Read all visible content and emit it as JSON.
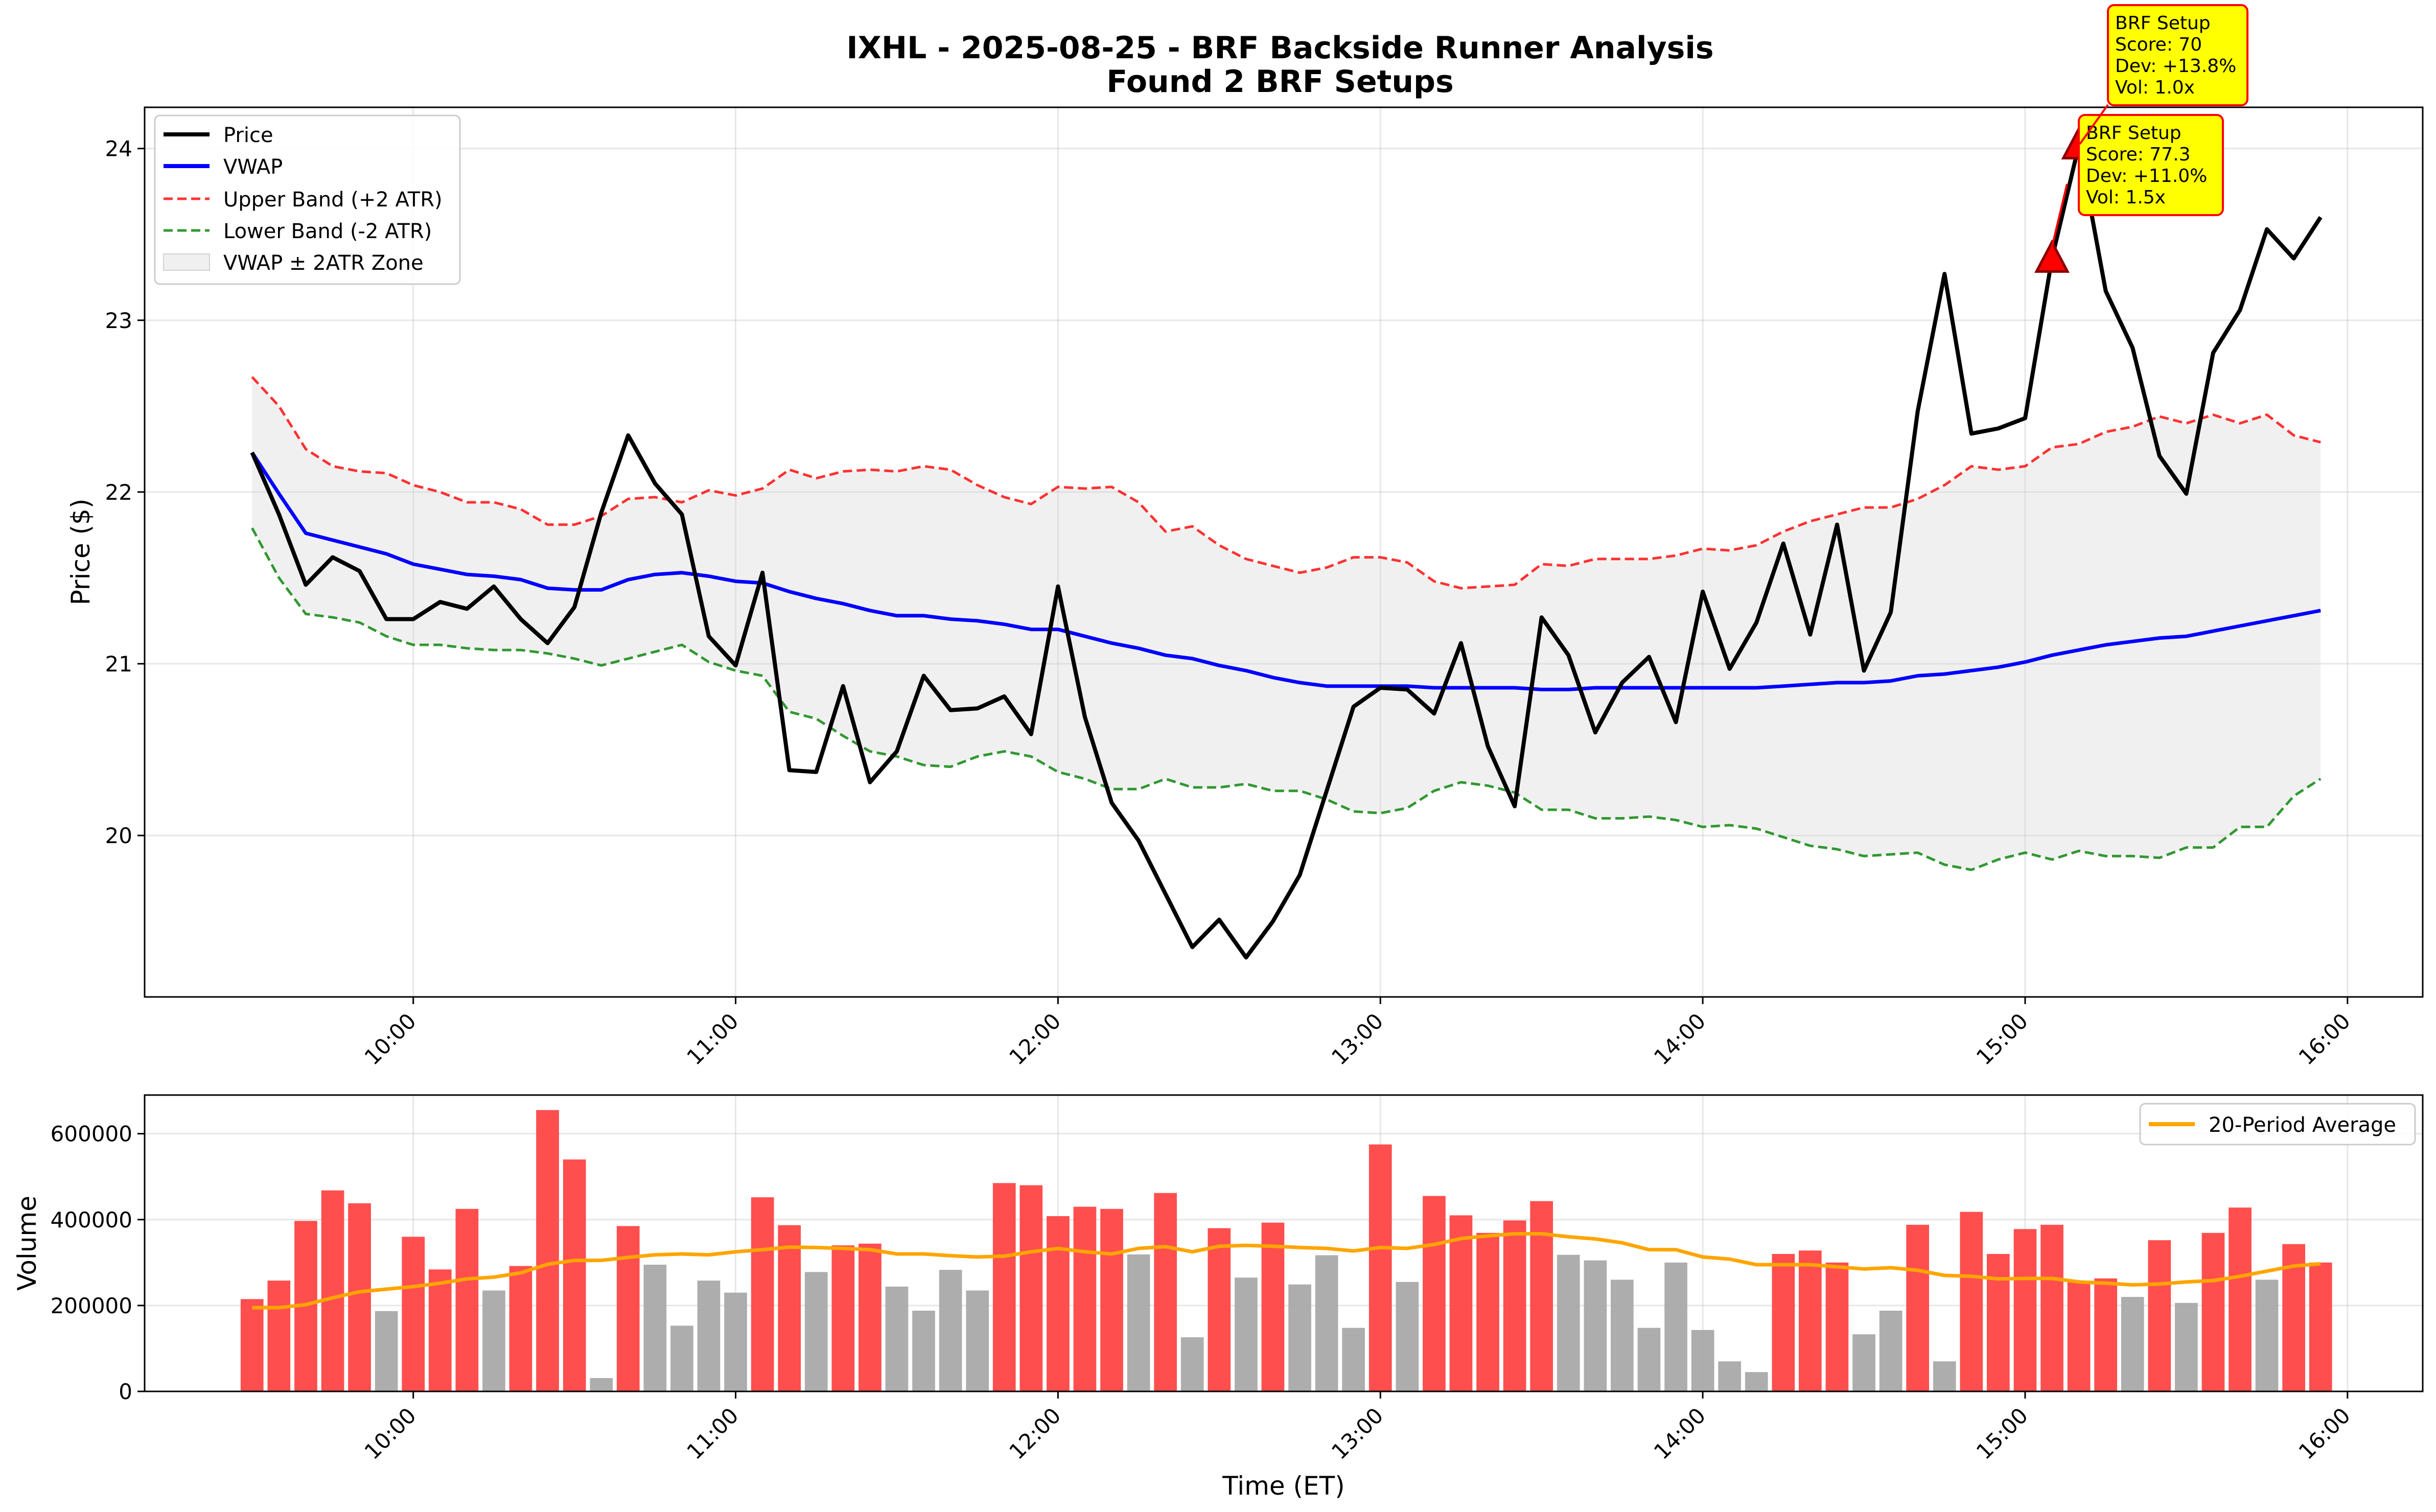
{
  "chart_data": [
    {
      "type": "line",
      "title": "IXHL - 2025-08-25 - BRF Backside Runner Analysis",
      "subtitle": "Found 2 BRF Setups",
      "ylabel": "Price ($)",
      "xlabel": "",
      "x_ticks": [
        "10:00",
        "11:00",
        "12:00",
        "13:00",
        "14:00",
        "15:00",
        "16:00"
      ],
      "y_ticks": [
        "20",
        "21",
        "22",
        "23",
        "24"
      ],
      "ylim": [
        19.06,
        24.24
      ],
      "xlim": [
        "09:10",
        "16:14"
      ],
      "grid": true,
      "legend_position": "upper-left",
      "legend": [
        "Price",
        "VWAP",
        "Upper Band (+2 ATR)",
        "Lower Band (-2 ATR)",
        "VWAP ± 2ATR Zone"
      ],
      "x": [
        "09:30",
        "09:35",
        "09:40",
        "09:45",
        "09:50",
        "09:55",
        "10:00",
        "10:05",
        "10:10",
        "10:15",
        "10:20",
        "10:25",
        "10:30",
        "10:35",
        "10:40",
        "10:45",
        "10:50",
        "10:55",
        "11:00",
        "11:05",
        "11:10",
        "11:15",
        "11:20",
        "11:25",
        "11:30",
        "11:35",
        "11:40",
        "11:45",
        "11:50",
        "11:55",
        "12:00",
        "12:05",
        "12:10",
        "12:15",
        "12:20",
        "12:25",
        "12:30",
        "12:35",
        "12:40",
        "12:45",
        "12:50",
        "12:55",
        "13:00",
        "13:05",
        "13:10",
        "13:15",
        "13:20",
        "13:25",
        "13:30",
        "13:35",
        "13:40",
        "13:45",
        "13:50",
        "13:55",
        "14:00",
        "14:05",
        "14:10",
        "14:15",
        "14:20",
        "14:25",
        "14:30",
        "14:35",
        "14:40",
        "14:45",
        "14:50",
        "14:55",
        "15:00",
        "15:05",
        "15:10",
        "15:15",
        "15:20",
        "15:25",
        "15:30",
        "15:35",
        "15:40",
        "15:45",
        "15:50",
        "15:55"
      ],
      "series": [
        {
          "name": "Price",
          "color": "#000000",
          "style": "solid",
          "values": [
            22.23,
            21.87,
            21.46,
            21.62,
            21.54,
            21.26,
            21.26,
            21.36,
            21.32,
            21.45,
            21.26,
            21.12,
            21.33,
            21.88,
            22.33,
            22.05,
            21.87,
            21.16,
            20.99,
            21.53,
            20.38,
            20.37,
            20.87,
            20.31,
            20.49,
            20.93,
            20.73,
            20.74,
            20.81,
            20.59,
            21.45,
            20.69,
            20.19,
            19.97,
            19.66,
            19.35,
            19.51,
            19.29,
            19.5,
            19.77,
            20.26,
            20.75,
            20.86,
            20.85,
            20.71,
            21.12,
            20.52,
            20.17,
            21.27,
            21.05,
            20.6,
            20.89,
            21.04,
            20.66,
            21.42,
            20.97,
            21.24,
            21.7,
            21.17,
            21.81,
            20.96,
            21.3,
            22.47,
            23.27,
            22.34,
            22.37,
            22.43,
            23.36,
            24.02,
            23.17,
            22.84,
            22.21,
            21.99,
            22.81,
            23.06,
            23.53,
            23.36,
            23.6
          ]
        },
        {
          "name": "VWAP",
          "color": "#0000ff",
          "style": "solid",
          "values": [
            22.23,
            21.99,
            21.76,
            21.72,
            21.68,
            21.64,
            21.58,
            21.55,
            21.52,
            21.51,
            21.49,
            21.44,
            21.43,
            21.43,
            21.49,
            21.52,
            21.53,
            21.51,
            21.48,
            21.47,
            21.42,
            21.38,
            21.35,
            21.31,
            21.28,
            21.28,
            21.26,
            21.25,
            21.23,
            21.2,
            21.2,
            21.16,
            21.12,
            21.09,
            21.05,
            21.03,
            20.99,
            20.96,
            20.92,
            20.89,
            20.87,
            20.87,
            20.87,
            20.87,
            20.86,
            20.86,
            20.86,
            20.86,
            20.85,
            20.85,
            20.86,
            20.86,
            20.86,
            20.86,
            20.86,
            20.86,
            20.86,
            20.87,
            20.88,
            20.89,
            20.89,
            20.9,
            20.93,
            20.94,
            20.96,
            20.98,
            21.01,
            21.05,
            21.08,
            21.11,
            21.13,
            21.15,
            21.16,
            21.19,
            21.22,
            21.25,
            21.28,
            21.31
          ]
        },
        {
          "name": "Upper Band (+2 ATR)",
          "color": "#ff0000",
          "style": "dashed",
          "values": [
            22.67,
            22.5,
            22.25,
            22.15,
            22.12,
            22.11,
            22.04,
            22.0,
            21.94,
            21.94,
            21.9,
            21.81,
            21.81,
            21.86,
            21.96,
            21.97,
            21.94,
            22.01,
            21.98,
            22.02,
            22.13,
            22.08,
            22.12,
            22.13,
            22.12,
            22.15,
            22.13,
            22.04,
            21.97,
            21.93,
            22.03,
            22.02,
            22.03,
            21.94,
            21.77,
            21.8,
            21.69,
            21.61,
            21.57,
            21.53,
            21.56,
            21.62,
            21.62,
            21.59,
            21.48,
            21.44,
            21.45,
            21.46,
            21.58,
            21.57,
            21.61,
            21.61,
            21.61,
            21.63,
            21.67,
            21.66,
            21.69,
            21.77,
            21.83,
            21.87,
            21.91,
            21.91,
            21.96,
            22.04,
            22.15,
            22.13,
            22.15,
            22.26,
            22.28,
            22.35,
            22.38,
            22.44,
            22.4,
            22.45,
            22.4,
            22.45,
            22.33,
            22.29
          ]
        },
        {
          "name": "Lower Band (-2 ATR)",
          "color": "#008000",
          "style": "dashed",
          "values": [
            21.79,
            21.5,
            21.29,
            21.27,
            21.24,
            21.16,
            21.11,
            21.11,
            21.09,
            21.08,
            21.08,
            21.06,
            21.03,
            20.99,
            21.03,
            21.07,
            21.11,
            21.01,
            20.96,
            20.93,
            20.72,
            20.68,
            20.58,
            20.49,
            20.46,
            20.41,
            20.4,
            20.46,
            20.49,
            20.46,
            20.37,
            20.33,
            20.27,
            20.27,
            20.33,
            20.28,
            20.28,
            20.3,
            20.26,
            20.26,
            20.21,
            20.14,
            20.13,
            20.16,
            20.26,
            20.31,
            20.29,
            20.25,
            20.15,
            20.15,
            20.1,
            20.1,
            20.11,
            20.09,
            20.05,
            20.06,
            20.04,
            19.99,
            19.94,
            19.92,
            19.88,
            19.89,
            19.9,
            19.83,
            19.8,
            19.86,
            19.9,
            19.86,
            19.91,
            19.88,
            19.88,
            19.87,
            19.93,
            19.93,
            20.05,
            20.05,
            20.23,
            20.33
          ]
        }
      ],
      "zone": {
        "name": "VWAP ± 2ATR Zone",
        "color": "#d3d3d3"
      },
      "setups": [
        {
          "x": "15:05",
          "y": 23.36,
          "label_lines": [
            "BRF Setup",
            "Score: 77.3",
            "Dev: +11.0%",
            "Vol: 1.5x"
          ]
        },
        {
          "x": "15:10",
          "y": 24.02,
          "label_lines": [
            "BRF Setup",
            "Score: 70",
            "Dev: +13.8%",
            "Vol: 1.0x"
          ]
        }
      ]
    },
    {
      "type": "bar",
      "title": "",
      "ylabel": "Volume",
      "xlabel": "Time (ET)",
      "x_ticks": [
        "10:00",
        "11:00",
        "12:00",
        "13:00",
        "14:00",
        "15:00",
        "16:00"
      ],
      "y_ticks": [
        "0",
        "200000",
        "400000",
        "600000"
      ],
      "ylim": [
        0,
        690000
      ],
      "grid": true,
      "legend_position": "upper-right",
      "legend": [
        "20-Period Average"
      ],
      "colors": {
        "up": "#ff4444",
        "down": "#a9a9a9",
        "average": "#ffa500"
      },
      "values": [
        215000,
        258000,
        397000,
        468000,
        438000,
        187000,
        360000,
        284000,
        425000,
        235000,
        292000,
        655000,
        540000,
        31000,
        385000,
        295000,
        153000,
        258000,
        230000,
        452000,
        387000,
        278000,
        340000,
        344000,
        244000,
        188000,
        283000,
        235000,
        485000,
        480000,
        408000,
        430000,
        425000,
        319000,
        462000,
        126000,
        380000,
        265000,
        393000,
        249000,
        317000,
        148000,
        575000,
        255000,
        455000,
        410000,
        369000,
        398000,
        443000,
        318000,
        305000,
        260000,
        148000,
        300000,
        143000,
        70000,
        45000,
        320000,
        328000,
        300000,
        133000,
        188000,
        388000,
        70000,
        418000,
        320000,
        378000,
        388000,
        255000,
        263000,
        220000,
        352000,
        206000,
        369000,
        428000,
        260000,
        343000,
        300000
      ],
      "up": [
        1,
        1,
        1,
        1,
        1,
        0,
        1,
        1,
        1,
        0,
        1,
        1,
        1,
        0,
        1,
        0,
        0,
        0,
        0,
        1,
        1,
        0,
        1,
        1,
        0,
        0,
        0,
        0,
        1,
        1,
        1,
        1,
        1,
        0,
        1,
        0,
        1,
        0,
        1,
        0,
        0,
        0,
        1,
        0,
        1,
        1,
        1,
        1,
        1,
        0,
        0,
        0,
        0,
        0,
        0,
        0,
        0,
        1,
        1,
        1,
        0,
        0,
        1,
        0,
        1,
        1,
        1,
        1,
        1,
        1,
        0,
        1,
        0,
        1,
        1,
        0,
        1,
        1
      ],
      "average": [
        195000,
        195000,
        202000,
        218000,
        232000,
        238000,
        244000,
        252000,
        262000,
        266000,
        276000,
        296000,
        305000,
        305000,
        312000,
        318000,
        320000,
        318000,
        325000,
        330000,
        336000,
        335000,
        333000,
        330000,
        320000,
        320000,
        316000,
        313000,
        315000,
        325000,
        333000,
        325000,
        320000,
        333000,
        337000,
        325000,
        338000,
        340000,
        338000,
        335000,
        333000,
        327000,
        335000,
        333000,
        342000,
        356000,
        362000,
        367000,
        367000,
        360000,
        355000,
        346000,
        330000,
        330000,
        313000,
        308000,
        295000,
        295000,
        295000,
        290000,
        285000,
        288000,
        282000,
        270000,
        268000,
        262000,
        263000,
        263000,
        255000,
        252000,
        248000,
        250000,
        255000,
        258000,
        268000,
        280000,
        292000,
        297000
      ]
    }
  ]
}
